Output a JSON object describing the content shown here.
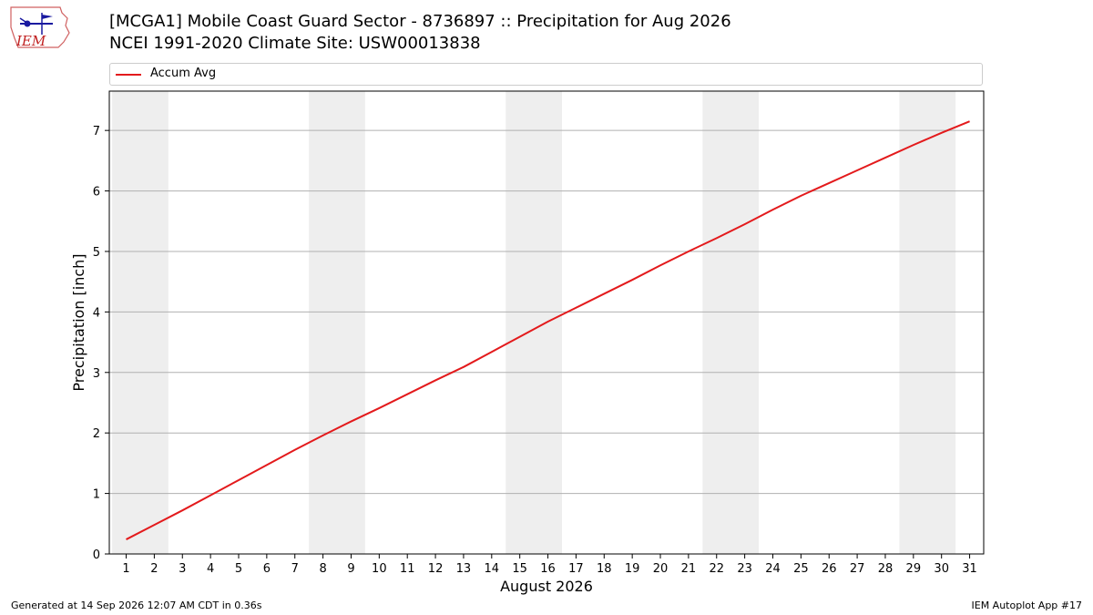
{
  "header": {
    "logo_text": "IEM",
    "title_line1": "[MCGA1] Mobile Coast Guard Sector - 8736897 :: Precipitation for Aug 2026",
    "title_line2": "NCEI 1991-2020 Climate Site: USW00013838"
  },
  "footer": {
    "generated": "Generated at 14 Sep 2026 12:07 AM CDT in 0.36s",
    "app": "IEM Autoplot App #17"
  },
  "colors": {
    "line": "#e31a1c",
    "weekend_band": "#eeeeee",
    "grid": "#b0b0b0"
  },
  "chart_data": {
    "type": "line",
    "xlabel": "August 2026",
    "ylabel": "Precipitation [inch]",
    "xlim": [
      0.4,
      31.5
    ],
    "ylim": [
      0,
      7.65
    ],
    "x": [
      1,
      2,
      3,
      4,
      5,
      6,
      7,
      8,
      9,
      10,
      11,
      12,
      13,
      14,
      15,
      16,
      17,
      18,
      19,
      20,
      21,
      22,
      23,
      24,
      25,
      26,
      27,
      28,
      29,
      30,
      31
    ],
    "xticks": [
      "1",
      "2",
      "3",
      "4",
      "5",
      "6",
      "7",
      "8",
      "9",
      "10",
      "11",
      "12",
      "13",
      "14",
      "15",
      "16",
      "17",
      "18",
      "19",
      "20",
      "21",
      "22",
      "23",
      "24",
      "25",
      "26",
      "27",
      "28",
      "29",
      "30",
      "31"
    ],
    "yticks": [
      0,
      1,
      2,
      3,
      4,
      5,
      6,
      7
    ],
    "grid": "horizontal",
    "legend": "top",
    "shaded_day_ranges": [
      [
        1,
        2
      ],
      [
        8,
        9
      ],
      [
        15,
        16
      ],
      [
        22,
        23
      ],
      [
        29,
        30
      ]
    ],
    "series": [
      {
        "name": "Accum Avg",
        "values": [
          0.24,
          0.48,
          0.72,
          0.97,
          1.22,
          1.47,
          1.72,
          1.96,
          2.19,
          2.41,
          2.64,
          2.87,
          3.09,
          3.34,
          3.59,
          3.84,
          4.07,
          4.3,
          4.53,
          4.77,
          5.0,
          5.22,
          5.45,
          5.69,
          5.92,
          6.13,
          6.34,
          6.55,
          6.76,
          6.96,
          7.15
        ]
      }
    ]
  }
}
